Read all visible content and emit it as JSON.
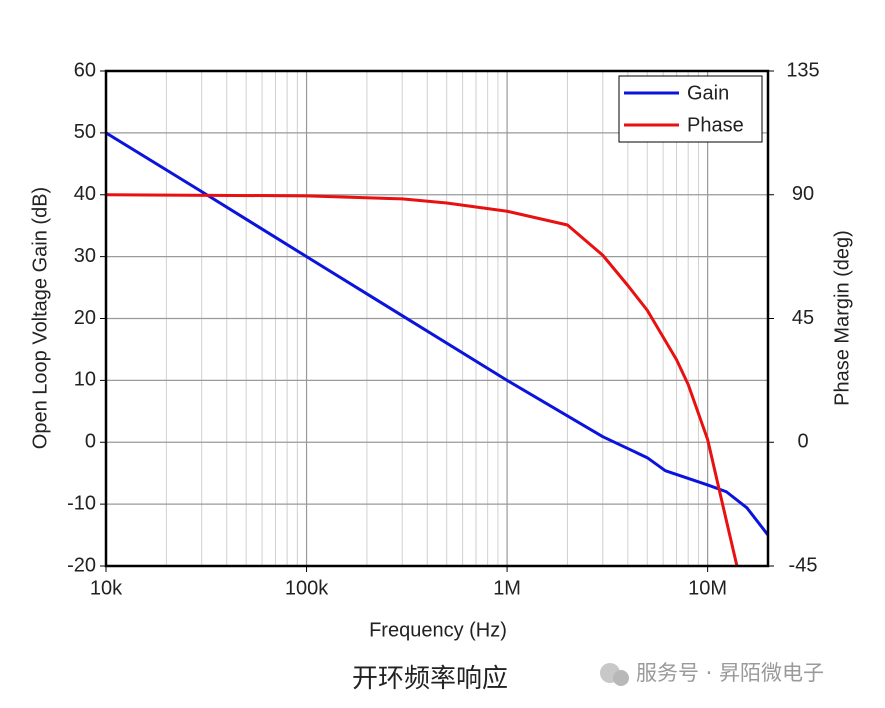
{
  "chart_data": {
    "type": "line",
    "x_label": "Frequency (Hz)",
    "y_label": "Open Loop Voltage Gain (dB)",
    "y2_label": "Phase Margin (deg)",
    "xlog": true,
    "xlim": [
      10000,
      20000000
    ],
    "xticks": [
      {
        "value": 10000,
        "label": "10k"
      },
      {
        "value": 100000,
        "label": "100k"
      },
      {
        "value": 1000000,
        "label": "1M"
      },
      {
        "value": 10000000,
        "label": "10M"
      }
    ],
    "ylim": [
      -20,
      60
    ],
    "yticks": [
      -20,
      -10,
      0,
      10,
      20,
      30,
      40,
      50,
      60
    ],
    "y2lim": [
      -45,
      135
    ],
    "y2ticks": [
      -45,
      0,
      45,
      90,
      135
    ],
    "grid": true,
    "legend": "upper right",
    "series": [
      {
        "name": "Gain",
        "color": "#0a14dc",
        "x": [
          10000,
          30000,
          100000,
          1000000,
          3000000,
          5000000,
          6150000,
          10000000,
          12400000,
          15700000,
          20000000
        ],
        "values": [
          50,
          40.5,
          30,
          10,
          0.9,
          -2.5,
          -4.6,
          -6.9,
          -8,
          -10.6,
          -15
        ]
      },
      {
        "name": "Phase",
        "color": "#e81010",
        "axis": "y2",
        "x": [
          10000,
          100000,
          300000,
          500000,
          1000000,
          2000000,
          3000000,
          4000000,
          5000000,
          7000000,
          8000000,
          10000000,
          12000000,
          14000000
        ],
        "values": [
          90,
          89.6,
          88.5,
          87,
          84,
          79,
          68,
          57,
          48,
          30,
          21,
          1,
          -24,
          -45
        ]
      }
    ]
  },
  "caption": "开环频率响应",
  "watermark": "服务号 · 昇陌微电子"
}
